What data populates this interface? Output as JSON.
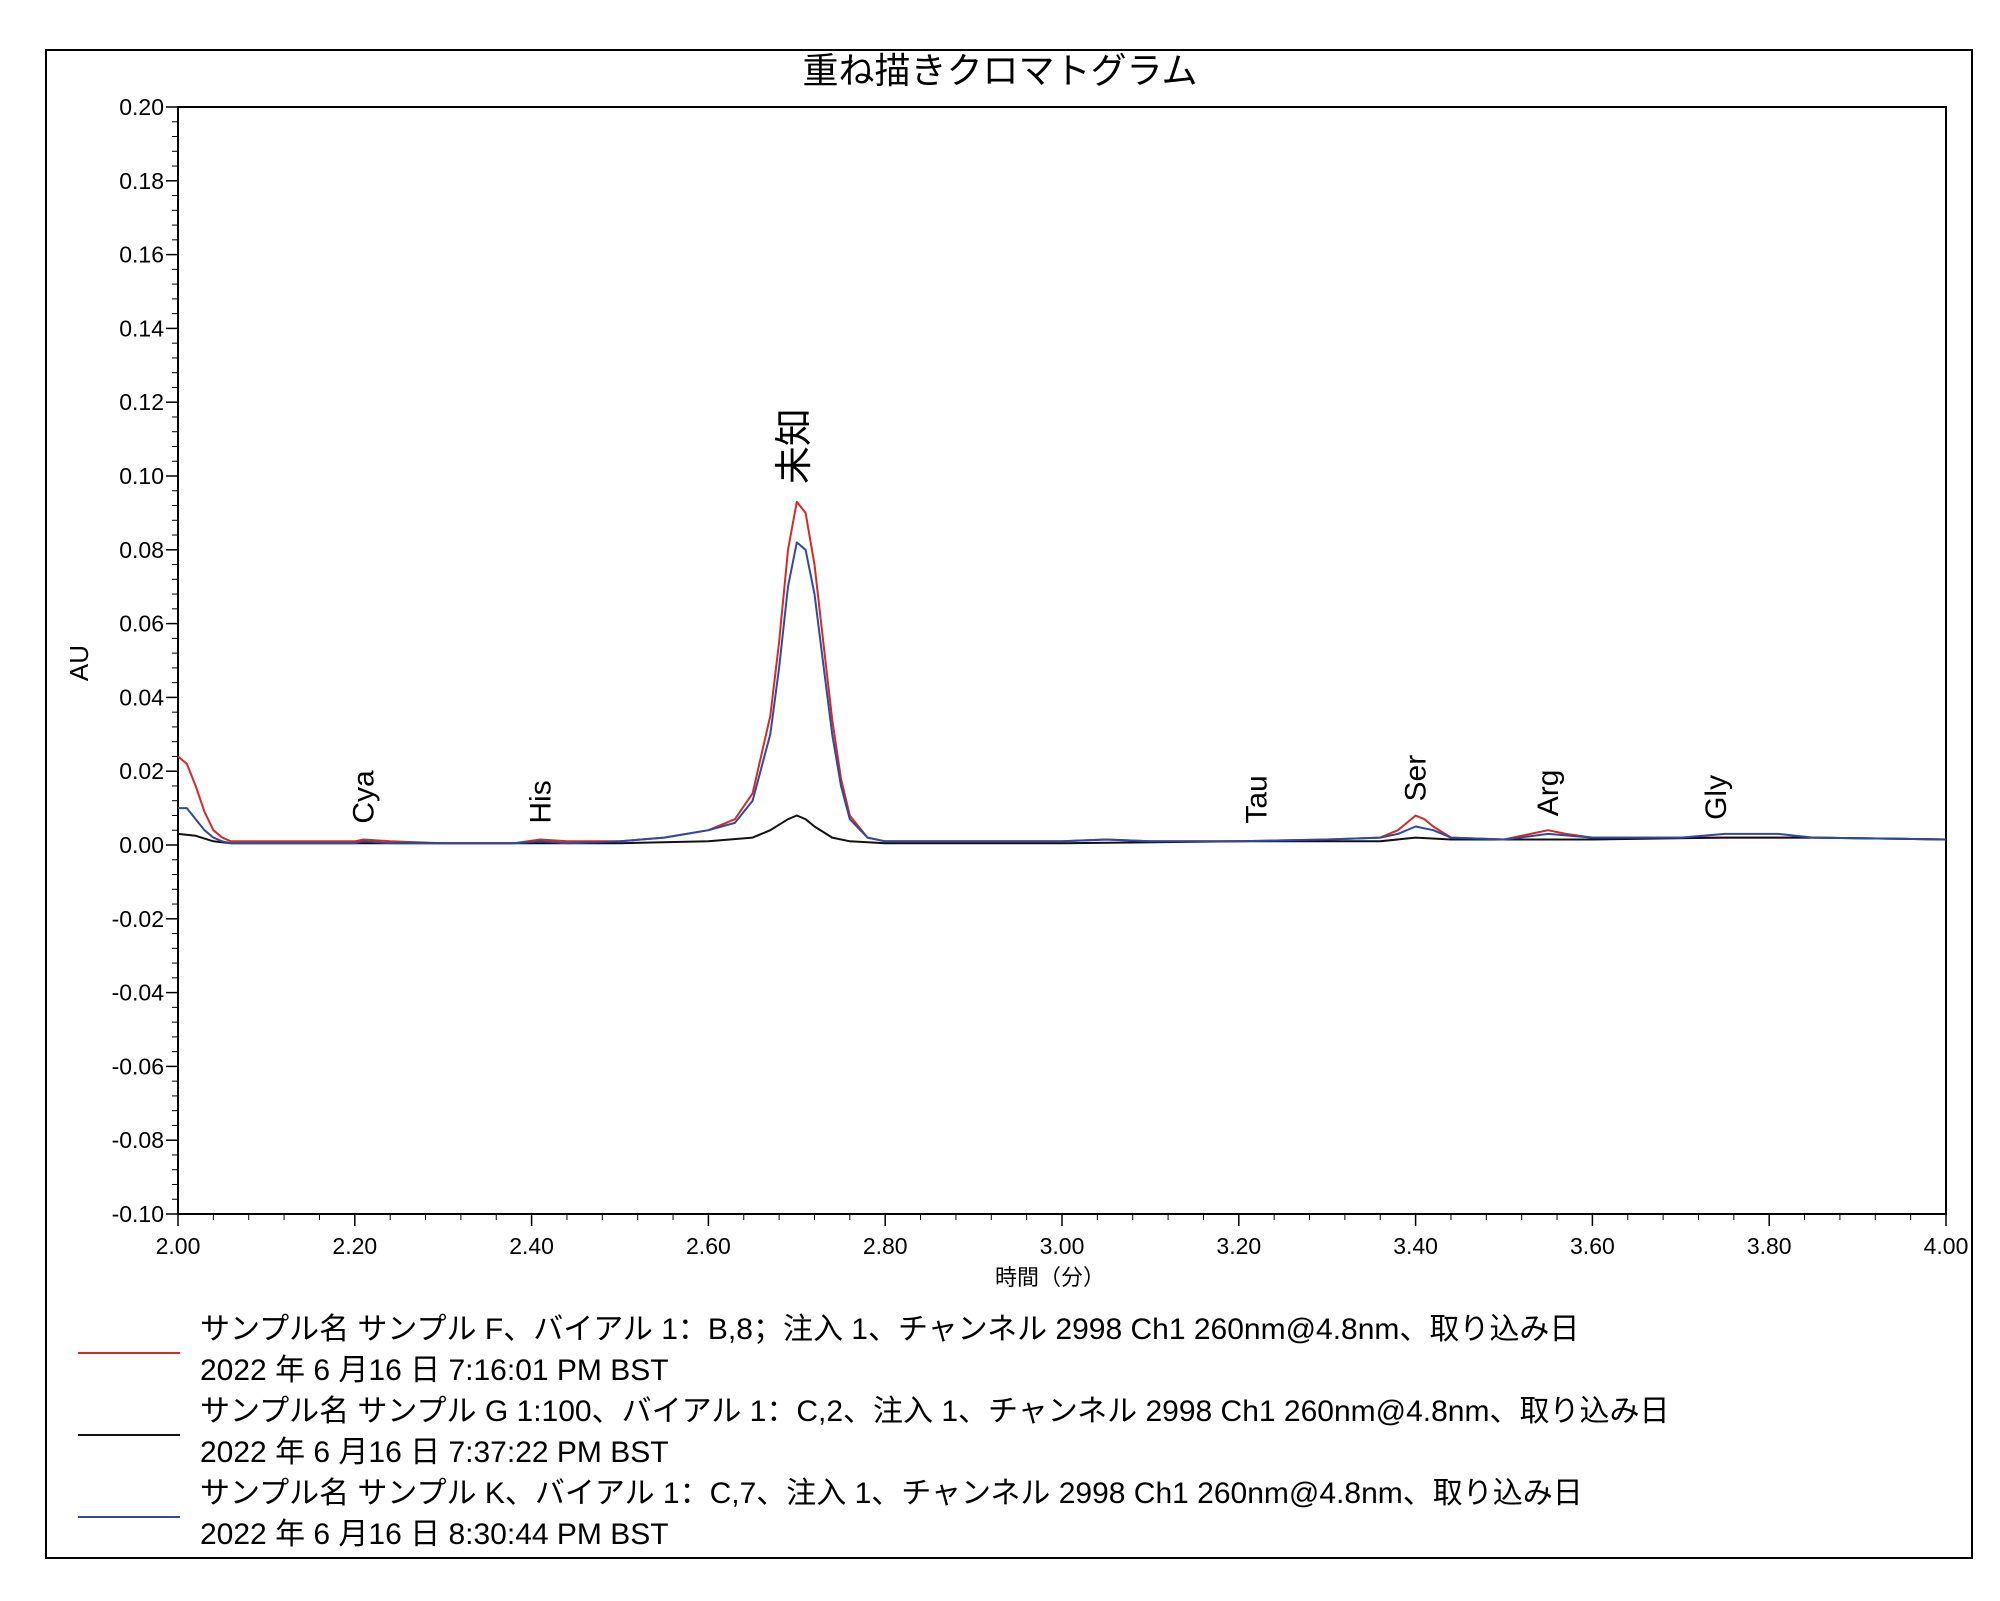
{
  "chart_data": {
    "type": "line",
    "title": "重ね描きクロマトグラム",
    "xlabel": "時間（分）",
    "ylabel": "AU",
    "xlim": [
      2.0,
      4.0
    ],
    "ylim": [
      -0.1,
      0.2
    ],
    "x_ticks": [
      "2.00",
      "2.20",
      "2.40",
      "2.60",
      "2.80",
      "3.00",
      "3.20",
      "3.40",
      "3.60",
      "3.80",
      "4.00"
    ],
    "y_ticks": [
      "0.20",
      "0.18",
      "0.16",
      "0.14",
      "0.12",
      "0.10",
      "0.08",
      "0.06",
      "0.04",
      "0.02",
      "0.00",
      "-0.02",
      "-0.04",
      "-0.06",
      "-0.08",
      "-0.10"
    ],
    "grid": false,
    "legend_position": "bottom",
    "peak_labels": [
      {
        "label": "Cya",
        "x": 2.21,
        "y": 0.002
      },
      {
        "label": "His",
        "x": 2.41,
        "y": 0.002
      },
      {
        "label": "未知",
        "x": 2.7,
        "y": 0.094
      },
      {
        "label": "Tau",
        "x": 3.22,
        "y": 0.002
      },
      {
        "label": "Ser",
        "x": 3.4,
        "y": 0.008
      },
      {
        "label": "Arg",
        "x": 3.55,
        "y": 0.004
      },
      {
        "label": "Gly",
        "x": 3.74,
        "y": 0.003
      }
    ],
    "series": [
      {
        "color": "#d42a2a",
        "legend_line1": "サンプル名 サンプル F、バイアル 1：B,8；注入 1、チャンネル 2998 Ch1 260nm@4.8nm、取り込み日",
        "legend_line2": "2022 年 6 月16 日 7:16:01 PM BST",
        "x": [
          2.0,
          2.01,
          2.02,
          2.03,
          2.04,
          2.05,
          2.06,
          2.1,
          2.2,
          2.21,
          2.24,
          2.3,
          2.38,
          2.41,
          2.44,
          2.5,
          2.55,
          2.6,
          2.63,
          2.65,
          2.67,
          2.68,
          2.69,
          2.7,
          2.71,
          2.72,
          2.73,
          2.74,
          2.75,
          2.76,
          2.78,
          2.8,
          3.0,
          3.05,
          3.1,
          3.2,
          3.3,
          3.36,
          3.38,
          3.39,
          3.4,
          3.41,
          3.42,
          3.44,
          3.5,
          3.53,
          3.55,
          3.57,
          3.6,
          3.7,
          3.75,
          3.8,
          3.85,
          4.0
        ],
        "y": [
          0.024,
          0.022,
          0.016,
          0.009,
          0.004,
          0.002,
          0.001,
          0.001,
          0.001,
          0.0015,
          0.001,
          0.0005,
          0.0005,
          0.0015,
          0.001,
          0.001,
          0.002,
          0.004,
          0.007,
          0.014,
          0.035,
          0.055,
          0.08,
          0.093,
          0.09,
          0.076,
          0.055,
          0.034,
          0.018,
          0.008,
          0.002,
          0.001,
          0.001,
          0.0015,
          0.001,
          0.001,
          0.0015,
          0.002,
          0.004,
          0.006,
          0.008,
          0.007,
          0.005,
          0.002,
          0.0015,
          0.003,
          0.004,
          0.003,
          0.002,
          0.002,
          0.002,
          0.002,
          0.002,
          0.0015
        ]
      },
      {
        "color": "#111111",
        "legend_line1": "サンプル名 サンプル G 1:100、バイアル 1：C,2、注入 1、チャンネル 2998 Ch1 260nm@4.8nm、取り込み日",
        "legend_line2": "2022 年 6 月16 日 7:37:22 PM BST",
        "x": [
          2.0,
          2.02,
          2.04,
          2.06,
          2.1,
          2.3,
          2.5,
          2.6,
          2.65,
          2.67,
          2.69,
          2.7,
          2.71,
          2.72,
          2.74,
          2.76,
          2.8,
          3.0,
          3.2,
          3.36,
          3.4,
          3.44,
          3.5,
          3.6,
          3.75,
          3.85,
          4.0
        ],
        "y": [
          0.003,
          0.0025,
          0.001,
          0.0005,
          0.0005,
          0.0005,
          0.0005,
          0.001,
          0.002,
          0.004,
          0.007,
          0.008,
          0.007,
          0.005,
          0.002,
          0.001,
          0.0005,
          0.0005,
          0.001,
          0.001,
          0.002,
          0.0015,
          0.0015,
          0.0015,
          0.002,
          0.002,
          0.0015
        ]
      },
      {
        "color": "#2e4b9e",
        "legend_line1": "サンプル名 サンプル K、バイアル 1：C,7、注入 1、チャンネル 2998 Ch1 260nm@4.8nm、取り込み日",
        "legend_line2": "2022 年 6 月16 日 8:30:44 PM BST",
        "x": [
          2.0,
          2.01,
          2.02,
          2.03,
          2.04,
          2.05,
          2.06,
          2.1,
          2.2,
          2.21,
          2.24,
          2.3,
          2.38,
          2.41,
          2.44,
          2.5,
          2.55,
          2.6,
          2.63,
          2.65,
          2.67,
          2.68,
          2.69,
          2.7,
          2.71,
          2.72,
          2.73,
          2.74,
          2.75,
          2.76,
          2.78,
          2.8,
          3.0,
          3.05,
          3.1,
          3.2,
          3.3,
          3.36,
          3.38,
          3.4,
          3.42,
          3.44,
          3.5,
          3.55,
          3.6,
          3.7,
          3.75,
          3.81,
          3.85,
          4.0
        ],
        "y": [
          0.01,
          0.01,
          0.007,
          0.004,
          0.002,
          0.001,
          0.0005,
          0.0005,
          0.0005,
          0.001,
          0.0005,
          0.0005,
          0.0005,
          0.001,
          0.0005,
          0.001,
          0.002,
          0.004,
          0.006,
          0.012,
          0.03,
          0.048,
          0.07,
          0.082,
          0.08,
          0.068,
          0.049,
          0.03,
          0.016,
          0.007,
          0.002,
          0.001,
          0.001,
          0.0015,
          0.001,
          0.001,
          0.0015,
          0.002,
          0.003,
          0.005,
          0.004,
          0.002,
          0.0015,
          0.003,
          0.002,
          0.002,
          0.003,
          0.003,
          0.002,
          0.0015
        ]
      }
    ]
  }
}
